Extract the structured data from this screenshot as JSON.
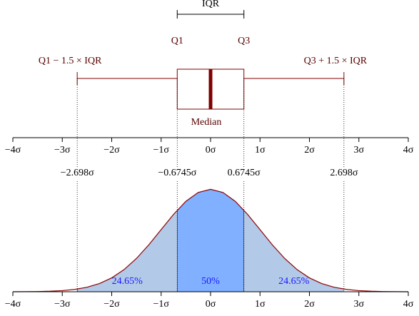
{
  "chart_data": [
    {
      "type": "box",
      "title": "IQR",
      "box": {
        "whislo": -2.698,
        "q1": -0.6745,
        "med": 0,
        "q3": 0.6745,
        "whishi": 2.698
      },
      "labels": {
        "q1": "Q1",
        "q3": "Q3",
        "med": "Median",
        "whislo": "Q1 − 1.5 × IQR",
        "whishi": "Q3 + 1.5 × IQR"
      },
      "color": "#800000",
      "xlim": [
        -4,
        4
      ],
      "xticks": [
        {
          "value": -4,
          "label": "−4σ"
        },
        {
          "value": -3,
          "label": "−3σ"
        },
        {
          "value": -2,
          "label": "−2σ"
        },
        {
          "value": -1,
          "label": "−1σ"
        },
        {
          "value": 0,
          "label": "0σ"
        },
        {
          "value": 1,
          "label": "1σ"
        },
        {
          "value": 2,
          "label": "2σ"
        },
        {
          "value": 3,
          "label": "3σ"
        },
        {
          "value": 4,
          "label": "4σ"
        }
      ]
    },
    {
      "type": "area",
      "x": [
        -4,
        -3.75,
        -3.5,
        -3.25,
        -3,
        -2.75,
        -2.5,
        -2.25,
        -2,
        -1.75,
        -1.5,
        -1.25,
        -1,
        -0.75,
        -0.5,
        -0.25,
        0,
        0.25,
        0.5,
        0.75,
        1,
        1.25,
        1.5,
        1.75,
        2,
        2.25,
        2.5,
        2.75,
        3,
        3.25,
        3.5,
        3.75,
        4
      ],
      "values": [
        0.0001,
        0.0004,
        0.0009,
        0.002,
        0.0044,
        0.0091,
        0.0175,
        0.0317,
        0.054,
        0.0863,
        0.1295,
        0.1826,
        0.242,
        0.3011,
        0.3521,
        0.3867,
        0.3989,
        0.3867,
        0.3521,
        0.3011,
        0.242,
        0.1826,
        0.1295,
        0.0863,
        0.054,
        0.0317,
        0.0175,
        0.0091,
        0.0044,
        0.002,
        0.0009,
        0.0004,
        0.0001
      ],
      "color": "#8b0000",
      "ylim": [
        0,
        0.4
      ],
      "boundaries": [
        {
          "value": -2.698,
          "label": "−2.698σ"
        },
        {
          "value": -0.6745,
          "label": "−0.6745σ"
        },
        {
          "value": 0.6745,
          "label": "0.6745σ"
        },
        {
          "value": 2.698,
          "label": "2.698σ"
        }
      ],
      "regions": [
        {
          "range": [
            -2.698,
            -0.6745
          ],
          "value": 24.65,
          "value_label": "24.65%",
          "color": "#b3c9e8"
        },
        {
          "range": [
            -0.6745,
            0.6745
          ],
          "value": 50,
          "value_label": "50%",
          "color": "#80b0ff"
        },
        {
          "range": [
            0.6745,
            2.698
          ],
          "value": 24.65,
          "value_label": "24.65%",
          "color": "#b3c9e8"
        }
      ],
      "xlim": [
        -4,
        4
      ],
      "xticks": [
        {
          "value": -4,
          "label": "−4σ"
        },
        {
          "value": -3,
          "label": "−3σ"
        },
        {
          "value": -2,
          "label": "−2σ"
        },
        {
          "value": -1,
          "label": "−1σ"
        },
        {
          "value": 0,
          "label": "0σ"
        },
        {
          "value": 1,
          "label": "1σ"
        },
        {
          "value": 2,
          "label": "2σ"
        },
        {
          "value": 3,
          "label": "3σ"
        },
        {
          "value": 4,
          "label": "4σ"
        }
      ]
    }
  ]
}
